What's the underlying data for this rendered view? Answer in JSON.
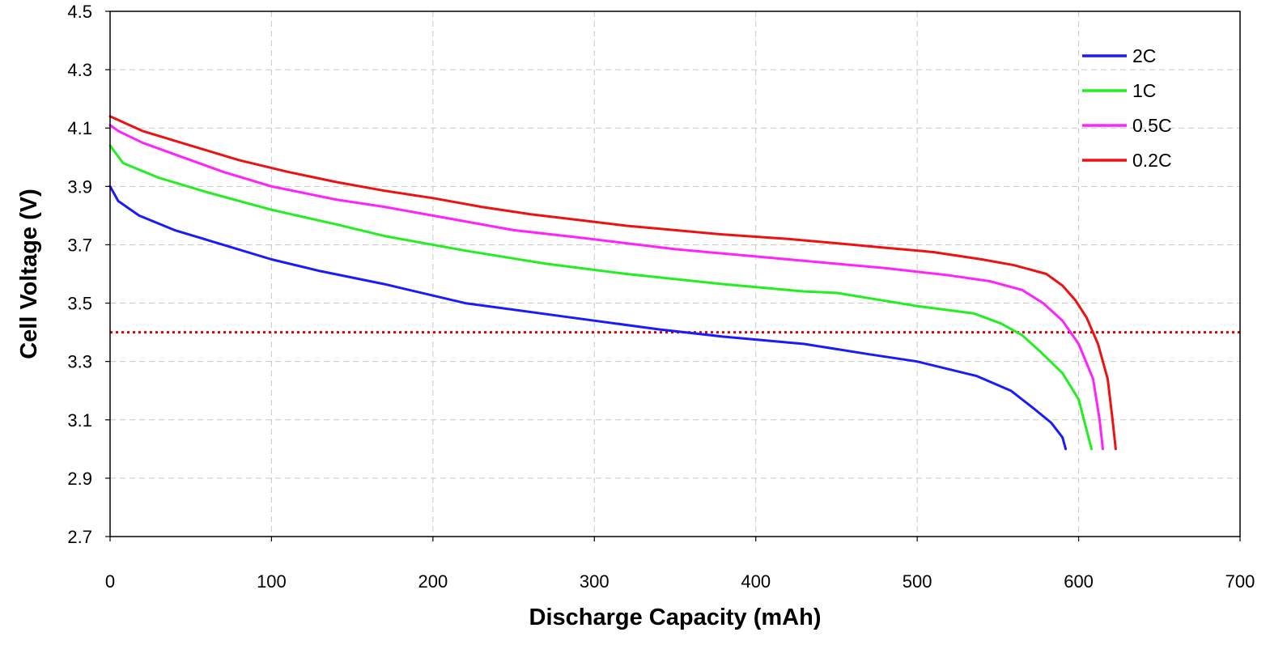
{
  "chart_data": {
    "type": "line",
    "title": "",
    "xlabel": "Discharge Capacity (mAh)",
    "ylabel": "Cell Voltage (V)",
    "xlim": [
      0,
      700
    ],
    "ylim": [
      2.7,
      4.5
    ],
    "xticks": [
      0,
      100,
      200,
      300,
      400,
      500,
      600,
      700
    ],
    "yticks": [
      "2.7",
      "2.9",
      "3.1",
      "3.3",
      "3.5",
      "3.7",
      "3.9",
      "4.1",
      "4.3",
      "4.5"
    ],
    "grid": true,
    "legend_position": "top-right",
    "reference_line": {
      "y": 3.4,
      "color": "#e00000",
      "style": "dotted"
    },
    "series": [
      {
        "name": "2C",
        "color": "#1a1aff",
        "points": [
          [
            0,
            3.9
          ],
          [
            5,
            3.85
          ],
          [
            18,
            3.8
          ],
          [
            40,
            3.75
          ],
          [
            70,
            3.7
          ],
          [
            100,
            3.65
          ],
          [
            130,
            3.61
          ],
          [
            170,
            3.565
          ],
          [
            220,
            3.5
          ],
          [
            280,
            3.455
          ],
          [
            340,
            3.41
          ],
          [
            380,
            3.385
          ],
          [
            430,
            3.36
          ],
          [
            470,
            3.325
          ],
          [
            500,
            3.3
          ],
          [
            537,
            3.25
          ],
          [
            558,
            3.2
          ],
          [
            572,
            3.14
          ],
          [
            583,
            3.09
          ],
          [
            590,
            3.04
          ],
          [
            592,
            3.0
          ]
        ]
      },
      {
        "name": "1C",
        "color": "#22ee22",
        "points": [
          [
            0,
            4.04
          ],
          [
            8,
            3.98
          ],
          [
            30,
            3.93
          ],
          [
            60,
            3.88
          ],
          [
            100,
            3.82
          ],
          [
            140,
            3.77
          ],
          [
            170,
            3.73
          ],
          [
            220,
            3.68
          ],
          [
            270,
            3.635
          ],
          [
            320,
            3.6
          ],
          [
            380,
            3.565
          ],
          [
            430,
            3.54
          ],
          [
            450,
            3.535
          ],
          [
            500,
            3.49
          ],
          [
            535,
            3.465
          ],
          [
            552,
            3.43
          ],
          [
            565,
            3.39
          ],
          [
            577,
            3.33
          ],
          [
            590,
            3.26
          ],
          [
            600,
            3.17
          ],
          [
            608,
            3.0
          ]
        ]
      },
      {
        "name": "0.5C",
        "color": "#ff22ff",
        "points": [
          [
            0,
            4.11
          ],
          [
            5,
            4.09
          ],
          [
            20,
            4.05
          ],
          [
            45,
            4.0
          ],
          [
            70,
            3.95
          ],
          [
            100,
            3.9
          ],
          [
            140,
            3.855
          ],
          [
            170,
            3.83
          ],
          [
            210,
            3.79
          ],
          [
            250,
            3.75
          ],
          [
            290,
            3.725
          ],
          [
            320,
            3.705
          ],
          [
            350,
            3.685
          ],
          [
            400,
            3.66
          ],
          [
            440,
            3.64
          ],
          [
            480,
            3.62
          ],
          [
            520,
            3.595
          ],
          [
            545,
            3.575
          ],
          [
            565,
            3.545
          ],
          [
            578,
            3.5
          ],
          [
            590,
            3.44
          ],
          [
            600,
            3.36
          ],
          [
            609,
            3.24
          ],
          [
            613,
            3.1
          ],
          [
            615,
            3.0
          ]
        ]
      },
      {
        "name": "0.2C",
        "color": "#ee1111",
        "points": [
          [
            0,
            4.14
          ],
          [
            20,
            4.09
          ],
          [
            50,
            4.04
          ],
          [
            80,
            3.99
          ],
          [
            110,
            3.95
          ],
          [
            140,
            3.915
          ],
          [
            170,
            3.885
          ],
          [
            200,
            3.86
          ],
          [
            230,
            3.83
          ],
          [
            260,
            3.805
          ],
          [
            290,
            3.785
          ],
          [
            320,
            3.765
          ],
          [
            350,
            3.75
          ],
          [
            380,
            3.735
          ],
          [
            420,
            3.72
          ],
          [
            460,
            3.7
          ],
          [
            480,
            3.69
          ],
          [
            510,
            3.675
          ],
          [
            540,
            3.65
          ],
          [
            560,
            3.63
          ],
          [
            580,
            3.6
          ],
          [
            590,
            3.56
          ],
          [
            598,
            3.51
          ],
          [
            605,
            3.45
          ],
          [
            612,
            3.36
          ],
          [
            618,
            3.24
          ],
          [
            621,
            3.1
          ],
          [
            623,
            3.0
          ]
        ]
      }
    ]
  }
}
